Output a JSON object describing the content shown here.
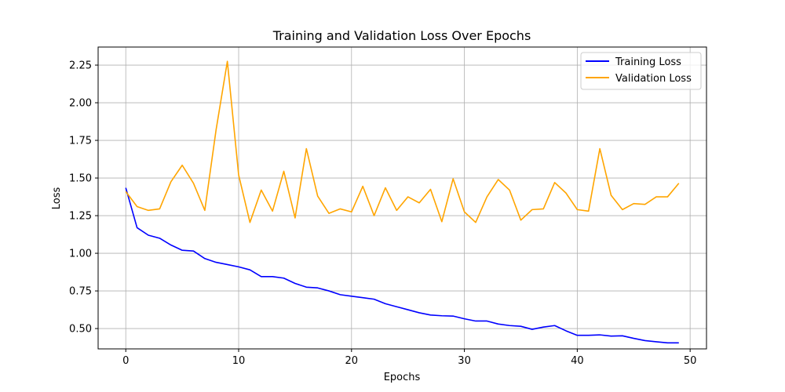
{
  "chart_data": {
    "type": "line",
    "title": "Training and Validation Loss Over Epochs",
    "xlabel": "Epochs",
    "ylabel": "Loss",
    "xlim": [
      -2.45,
      51.45
    ],
    "ylim": [
      0.365,
      2.37
    ],
    "xticks": [
      0,
      10,
      20,
      30,
      40,
      50
    ],
    "yticks": [
      0.5,
      0.75,
      1.0,
      1.25,
      1.5,
      1.75,
      2.0,
      2.25
    ],
    "ytick_labels": [
      "0.50",
      "0.75",
      "1.00",
      "1.25",
      "1.50",
      "1.75",
      "2.00",
      "2.25"
    ],
    "grid": true,
    "legend_position": "top-right",
    "x": [
      0,
      1,
      2,
      3,
      4,
      5,
      6,
      7,
      8,
      9,
      10,
      11,
      12,
      13,
      14,
      15,
      16,
      17,
      18,
      19,
      20,
      21,
      22,
      23,
      24,
      25,
      26,
      27,
      28,
      29,
      30,
      31,
      32,
      33,
      34,
      35,
      36,
      37,
      38,
      39,
      40,
      41,
      42,
      43,
      44,
      45,
      46,
      47,
      48,
      49
    ],
    "series": [
      {
        "name": "Training Loss",
        "color": "#0000ff",
        "values": [
          1.435,
          1.17,
          1.12,
          1.1,
          1.055,
          1.02,
          1.015,
          0.965,
          0.94,
          0.925,
          0.91,
          0.89,
          0.845,
          0.845,
          0.835,
          0.8,
          0.775,
          0.77,
          0.75,
          0.725,
          0.715,
          0.705,
          0.695,
          0.665,
          0.645,
          0.625,
          0.605,
          0.59,
          0.585,
          0.583,
          0.565,
          0.55,
          0.55,
          0.53,
          0.52,
          0.515,
          0.495,
          0.51,
          0.52,
          0.485,
          0.455,
          0.455,
          0.458,
          0.45,
          0.452,
          0.435,
          0.42,
          0.412,
          0.405,
          0.405
        ]
      },
      {
        "name": "Validation Loss",
        "color": "#ffa500",
        "values": [
          1.41,
          1.31,
          1.285,
          1.295,
          1.475,
          1.585,
          1.465,
          1.285,
          1.82,
          2.275,
          1.52,
          1.205,
          1.42,
          1.28,
          1.545,
          1.235,
          1.695,
          1.38,
          1.265,
          1.295,
          1.275,
          1.445,
          1.25,
          1.435,
          1.285,
          1.375,
          1.335,
          1.425,
          1.21,
          1.495,
          1.275,
          1.205,
          1.375,
          1.49,
          1.42,
          1.22,
          1.29,
          1.295,
          1.47,
          1.4,
          1.29,
          1.28,
          1.695,
          1.385,
          1.29,
          1.33,
          1.325,
          1.375,
          1.375,
          1.465
        ]
      }
    ]
  }
}
